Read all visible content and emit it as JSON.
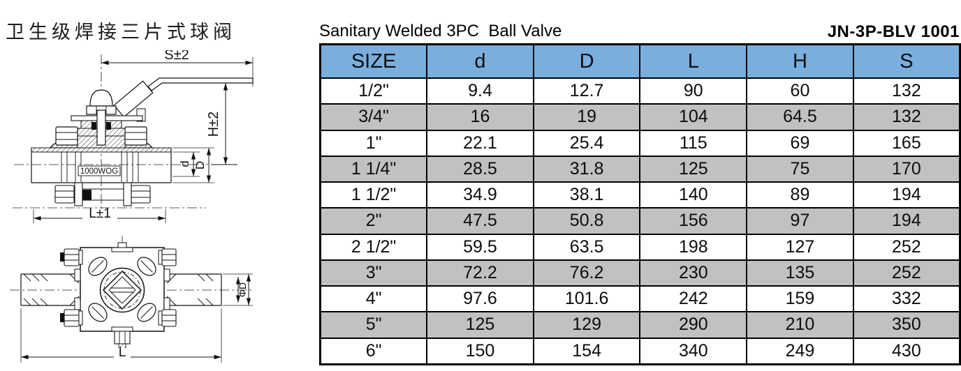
{
  "header": {
    "title_cn": "卫生级焊接三片式球阀",
    "title_en": "Sanitary Welded 3PC  Ball Valve",
    "model": "JN-3P-BLV 1001"
  },
  "drawings": {
    "side_view": {
      "dim_s": "S±2",
      "dim_h": "H±2",
      "dim_d": "d",
      "dim_D": "D",
      "dim_l": "L±1",
      "pressure_rating": "1000WOG"
    },
    "front_view": {
      "dim_phi_d": "ΦD",
      "dim_l": "L"
    }
  },
  "colors": {
    "table_header_bg": "#79aedd",
    "row_alt_bg": "#c1c1c1",
    "row_bg": "#ffffff",
    "border": "#000000"
  },
  "chart_data": {
    "type": "table",
    "title": "Sanitary Welded 3PC Ball Valve",
    "model": "JN-3P-BLV 1001",
    "columns": [
      "SIZE",
      "d",
      "D",
      "L",
      "H",
      "S"
    ],
    "rows": [
      [
        "1/2\"",
        "9.4",
        "12.7",
        "90",
        "60",
        "132"
      ],
      [
        "3/4\"",
        "16",
        "19",
        "104",
        "64.5",
        "132"
      ],
      [
        "1\"",
        "22.1",
        "25.4",
        "115",
        "69",
        "165"
      ],
      [
        "1 1/4\"",
        "28.5",
        "31.8",
        "125",
        "75",
        "170"
      ],
      [
        "1 1/2\"",
        "34.9",
        "38.1",
        "140",
        "89",
        "194"
      ],
      [
        "2\"",
        "47.5",
        "50.8",
        "156",
        "97",
        "194"
      ],
      [
        "2 1/2\"",
        "59.5",
        "63.5",
        "198",
        "127",
        "252"
      ],
      [
        "3\"",
        "72.2",
        "76.2",
        "230",
        "135",
        "252"
      ],
      [
        "4\"",
        "97.6",
        "101.6",
        "242",
        "159",
        "332"
      ],
      [
        "5\"",
        "125",
        "129",
        "290",
        "210",
        "350"
      ],
      [
        "6\"",
        "150",
        "154",
        "340",
        "249",
        "430"
      ]
    ]
  }
}
